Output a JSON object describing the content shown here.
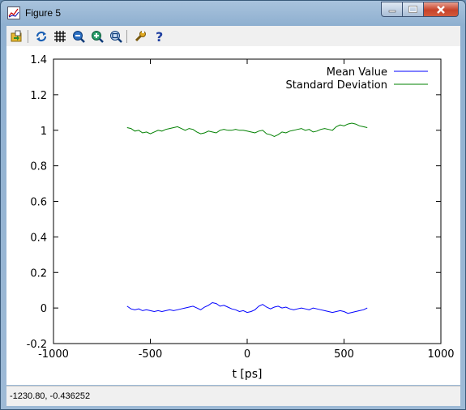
{
  "window": {
    "title": "Figure 5"
  },
  "toolbar": {
    "items": [
      {
        "name": "open-icon"
      },
      {
        "name": "refresh-icon"
      },
      {
        "name": "grid-icon"
      },
      {
        "name": "zoom-out-icon"
      },
      {
        "name": "zoom-in-icon"
      },
      {
        "name": "zoom-fit-icon"
      },
      {
        "name": "settings-wrench-icon"
      },
      {
        "name": "help-icon"
      }
    ]
  },
  "status": {
    "coords": "-1230.80, -0.436252"
  },
  "chart_data": {
    "type": "line",
    "title": "",
    "xlabel": "t [ps]",
    "ylabel": "",
    "xlim": [
      -1000,
      1000
    ],
    "ylim": [
      -0.2,
      1.4
    ],
    "xticks": [
      "-1000",
      "-500",
      "0",
      "500",
      "1000"
    ],
    "yticks": [
      "-0.2",
      "0",
      "0.2",
      "0.4",
      "0.6",
      "0.8",
      "1",
      "1.2",
      "1.4"
    ],
    "legend_position": "top-right",
    "grid": false,
    "series": [
      {
        "name": "Mean Value",
        "color": "#0000ff",
        "x": [
          -620,
          -600,
          -580,
          -560,
          -540,
          -520,
          -500,
          -480,
          -460,
          -440,
          -420,
          -400,
          -380,
          -360,
          -340,
          -320,
          -300,
          -280,
          -260,
          -240,
          -220,
          -200,
          -180,
          -160,
          -140,
          -120,
          -100,
          -80,
          -60,
          -40,
          -20,
          0,
          20,
          40,
          60,
          80,
          100,
          120,
          140,
          160,
          180,
          200,
          220,
          240,
          260,
          280,
          300,
          320,
          340,
          360,
          380,
          400,
          420,
          440,
          460,
          480,
          500,
          520,
          540,
          560,
          580,
          600,
          620
        ],
        "values": [
          0.01,
          -0.005,
          -0.01,
          -0.005,
          -0.015,
          -0.01,
          -0.015,
          -0.02,
          -0.015,
          -0.02,
          -0.015,
          -0.01,
          -0.015,
          -0.01,
          -0.005,
          0.0,
          0.005,
          0.01,
          0.0,
          -0.01,
          0.005,
          0.015,
          0.03,
          0.025,
          0.01,
          0.015,
          0.005,
          -0.005,
          -0.01,
          -0.02,
          -0.015,
          -0.025,
          -0.02,
          -0.01,
          0.01,
          0.02,
          0.005,
          -0.005,
          0.005,
          0.01,
          0.0,
          0.005,
          -0.005,
          -0.01,
          -0.005,
          0.0,
          -0.005,
          -0.01,
          0.0,
          -0.005,
          -0.01,
          -0.015,
          -0.02,
          -0.025,
          -0.02,
          -0.015,
          -0.02,
          -0.03,
          -0.025,
          -0.02,
          -0.015,
          -0.01,
          0.0
        ]
      },
      {
        "name": "Standard Deviation",
        "color": "#008000",
        "x": [
          -620,
          -600,
          -580,
          -560,
          -540,
          -520,
          -500,
          -480,
          -460,
          -440,
          -420,
          -400,
          -380,
          -360,
          -340,
          -320,
          -300,
          -280,
          -260,
          -240,
          -220,
          -200,
          -180,
          -160,
          -140,
          -120,
          -100,
          -80,
          -60,
          -40,
          -20,
          0,
          20,
          40,
          60,
          80,
          100,
          120,
          140,
          160,
          180,
          200,
          220,
          240,
          260,
          280,
          300,
          320,
          340,
          360,
          380,
          400,
          420,
          440,
          460,
          480,
          500,
          520,
          540,
          560,
          580,
          600,
          620
        ],
        "values": [
          1.015,
          1.01,
          0.995,
          1.0,
          0.985,
          0.99,
          0.98,
          0.99,
          1.0,
          0.995,
          1.005,
          1.01,
          1.015,
          1.02,
          1.01,
          1.0,
          1.01,
          1.005,
          0.99,
          0.98,
          0.985,
          0.995,
          0.99,
          0.985,
          1.0,
          1.005,
          1.0,
          1.0,
          1.005,
          1.0,
          1.0,
          0.995,
          0.99,
          0.985,
          0.995,
          1.0,
          0.98,
          0.975,
          0.965,
          0.975,
          0.99,
          0.985,
          0.995,
          1.0,
          1.005,
          1.01,
          1.0,
          1.005,
          0.99,
          0.995,
          1.005,
          1.01,
          1.005,
          1.0,
          1.02,
          1.03,
          1.025,
          1.035,
          1.04,
          1.035,
          1.025,
          1.02,
          1.015
        ]
      }
    ]
  }
}
